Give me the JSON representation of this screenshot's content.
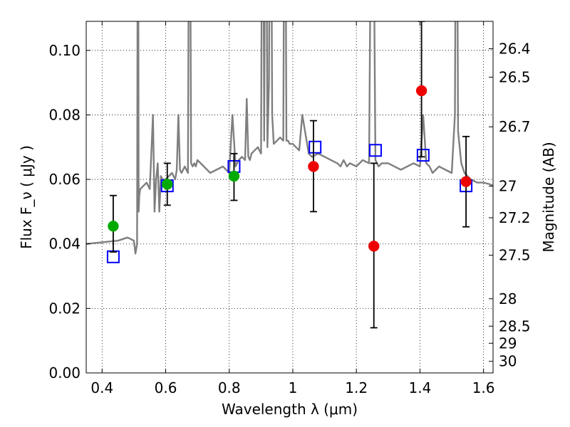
{
  "chart_data": {
    "type": "scatter",
    "xlabel": "Wavelength  λ (μm)",
    "ylabel": "Flux  F_ν  ( μJy )",
    "ylabel_right": "Magnitude (AB)",
    "xlim": [
      0.35,
      1.63
    ],
    "ylim": [
      0.0,
      0.109
    ],
    "grid": true,
    "xticks": [
      0.4,
      0.6,
      0.8,
      1.0,
      1.2,
      1.4,
      1.6
    ],
    "xtick_labels": [
      "0.4",
      "0.6",
      "0.8",
      "1",
      "1.2",
      "1.4",
      "1.6"
    ],
    "yticks": [
      0.0,
      0.02,
      0.04,
      0.06,
      0.08,
      0.1
    ],
    "ytick_labels": [
      "0.00",
      "0.02",
      "0.04",
      "0.06",
      "0.08",
      "0.10"
    ],
    "right_ticks": [
      {
        "label": "26.4",
        "flux": 0.1005
      },
      {
        "label": "26.5",
        "flux": 0.0917
      },
      {
        "label": "26.7",
        "flux": 0.0763
      },
      {
        "label": "27",
        "flux": 0.0579
      },
      {
        "label": "27.2",
        "flux": 0.0481
      },
      {
        "label": "27.5",
        "flux": 0.0365
      },
      {
        "label": "28",
        "flux": 0.023
      },
      {
        "label": "28.5",
        "flux": 0.0145
      },
      {
        "label": "29",
        "flux": 0.0092
      },
      {
        "label": "30",
        "flux": 0.0036
      }
    ],
    "series": [
      {
        "kind": "line",
        "color": "#7f7f7f",
        "x": [
          0.35,
          0.4,
          0.45,
          0.48,
          0.5,
          0.505,
          0.51,
          0.513,
          0.515,
          0.517,
          0.52,
          0.53,
          0.54,
          0.55,
          0.56,
          0.565,
          0.57,
          0.575,
          0.58,
          0.585,
          0.59,
          0.6,
          0.62,
          0.63,
          0.635,
          0.64,
          0.645,
          0.65,
          0.66,
          0.67,
          0.675,
          0.68,
          0.685,
          0.69,
          0.695,
          0.7,
          0.72,
          0.74,
          0.76,
          0.78,
          0.8,
          0.81,
          0.82,
          0.83,
          0.84,
          0.85,
          0.855,
          0.86,
          0.865,
          0.87,
          0.88,
          0.89,
          0.9,
          0.905,
          0.91,
          0.915,
          0.92,
          0.925,
          0.93,
          0.935,
          0.94,
          0.95,
          0.96,
          0.97,
          0.975,
          0.98,
          0.985,
          0.99,
          1.0,
          1.01,
          1.02,
          1.03,
          1.05,
          1.06,
          1.08,
          1.1,
          1.12,
          1.14,
          1.15,
          1.16,
          1.17,
          1.18,
          1.2,
          1.22,
          1.24,
          1.25,
          1.26,
          1.27,
          1.28,
          1.3,
          1.32,
          1.34,
          1.36,
          1.38,
          1.4,
          1.41,
          1.42,
          1.43,
          1.44,
          1.46,
          1.48,
          1.5,
          1.51,
          1.515,
          1.52,
          1.53,
          1.54,
          1.56,
          1.58,
          1.6,
          1.62,
          1.63
        ],
        "y": [
          0.04,
          0.0405,
          0.041,
          0.042,
          0.041,
          0.037,
          0.04,
          0.2,
          0.05,
          0.055,
          0.057,
          0.058,
          0.059,
          0.057,
          0.08,
          0.05,
          0.06,
          0.065,
          0.05,
          0.061,
          0.06,
          0.06,
          0.062,
          0.06,
          0.063,
          0.08,
          0.063,
          0.062,
          0.064,
          0.062,
          0.2,
          0.065,
          0.064,
          0.065,
          0.064,
          0.066,
          0.064,
          0.062,
          0.063,
          0.064,
          0.062,
          0.08,
          0.064,
          0.066,
          0.067,
          0.066,
          0.085,
          0.067,
          0.066,
          0.068,
          0.069,
          0.07,
          0.068,
          0.2,
          0.072,
          0.2,
          0.07,
          0.09,
          0.2,
          0.08,
          0.071,
          0.072,
          0.073,
          0.072,
          0.2,
          0.072,
          0.072,
          0.071,
          0.071,
          0.07,
          0.069,
          0.08,
          0.068,
          0.067,
          0.068,
          0.067,
          0.066,
          0.065,
          0.064,
          0.066,
          0.064,
          0.065,
          0.064,
          0.066,
          0.065,
          0.2,
          0.066,
          0.064,
          0.065,
          0.065,
          0.064,
          0.063,
          0.064,
          0.065,
          0.064,
          0.08,
          0.065,
          0.064,
          0.062,
          0.064,
          0.063,
          0.062,
          0.08,
          0.2,
          0.075,
          0.065,
          0.062,
          0.06,
          0.059,
          0.059,
          0.0585,
          0.058
        ]
      },
      {
        "kind": "points",
        "marker": "square-open",
        "color": "#0000ff",
        "x": [
          0.435,
          0.605,
          0.815,
          1.07,
          1.26,
          1.41,
          1.545
        ],
        "y": [
          0.036,
          0.058,
          0.064,
          0.07,
          0.069,
          0.0675,
          0.058
        ]
      },
      {
        "kind": "points",
        "marker": "circle",
        "color": "#00aa00",
        "x": [
          0.435,
          0.605,
          0.815
        ],
        "y": [
          0.0455,
          0.0585,
          0.061
        ],
        "err_low": [
          0.0375,
          0.052,
          0.0535
        ],
        "err_high": [
          0.055,
          0.065,
          0.068
        ]
      },
      {
        "kind": "points",
        "marker": "circle",
        "color": "#ee0000",
        "x": [
          1.065,
          1.255,
          1.405,
          1.545
        ],
        "y": [
          0.064,
          0.0393,
          0.0875,
          0.0593
        ],
        "err_low": [
          0.05,
          0.014,
          0.067,
          0.0453
        ],
        "err_high": [
          0.0782,
          0.065,
          0.109,
          0.0733
        ]
      }
    ]
  }
}
